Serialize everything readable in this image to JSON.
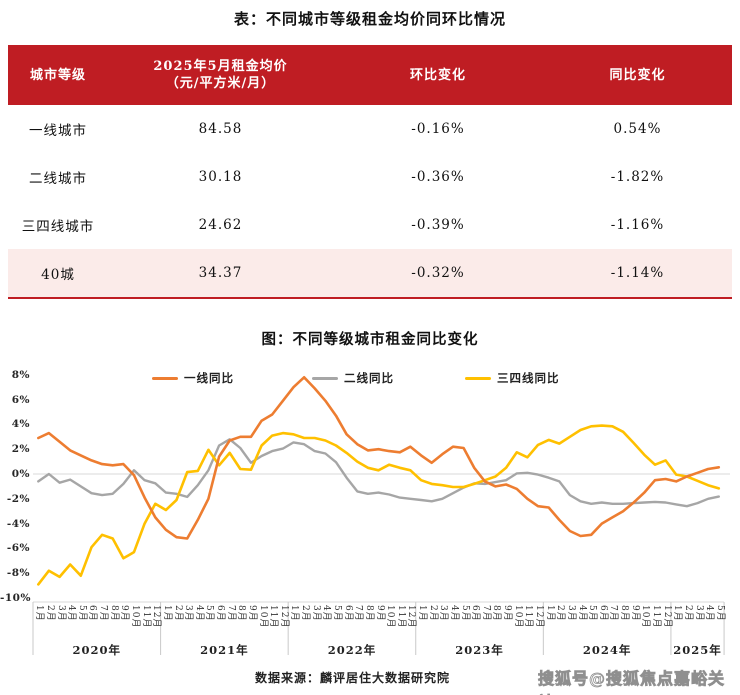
{
  "page": {
    "table_title": "表：不同城市等级租金均价同环比情况",
    "chart_title": "图：不同等级城市租金同比变化",
    "source": "数据来源：麟评居住大数据研究院",
    "watermark": "搜狐号@搜狐焦点嘉峪关站"
  },
  "colors": {
    "header_red": "#BF1D23",
    "highlight_pink": "#FBEBE9",
    "grid_gray": "#D9D9D9",
    "tick_gray": "#C9C9C9",
    "line_first_tier": "#ED7D31",
    "line_second_tier": "#A6A6A6",
    "line_third_fourth_tier": "#FFC000"
  },
  "table": {
    "header": {
      "tier": "城市等级",
      "price_line1": "2025年5月租金均价",
      "price_line2": "（元/平方米/月）",
      "mom": "环比变化",
      "yoy": "同比变化"
    },
    "rows": [
      {
        "tier": "一线城市",
        "price": "84.58",
        "mom": "-0.16%",
        "yoy": "0.54%",
        "highlight": false
      },
      {
        "tier": "二线城市",
        "price": "30.18",
        "mom": "-0.36%",
        "yoy": "-1.82%",
        "highlight": false
      },
      {
        "tier": "三四线城市",
        "price": "24.62",
        "mom": "-0.39%",
        "yoy": "-1.16%",
        "highlight": false
      },
      {
        "tier": "40城",
        "price": "34.37",
        "mom": "-0.32%",
        "yoy": "-1.14%",
        "highlight": true
      }
    ]
  },
  "chart_data": [
    {
      "type": "table",
      "title": "表：不同城市等级租金均价同环比情况",
      "columns": [
        "城市等级",
        "2025年5月租金均价（元/平方米/月）",
        "环比变化",
        "同比变化"
      ],
      "rows": [
        [
          "一线城市",
          84.58,
          "-0.16%",
          "0.54%"
        ],
        [
          "二线城市",
          30.18,
          "-0.36%",
          "-1.82%"
        ],
        [
          "三四线城市",
          24.62,
          "-0.39%",
          "-1.16%"
        ],
        [
          "40城",
          34.37,
          "-0.32%",
          "-1.14%"
        ]
      ]
    },
    {
      "type": "line",
      "title": "图：不同等级城市租金同比变化",
      "ylabel": "",
      "ylim": [
        -10,
        8
      ],
      "y_tick_step": 2,
      "y_tick_suffix": "%",
      "grid": "zero-line-only",
      "legend_position": "top",
      "x": [
        "1月",
        "2月",
        "3月",
        "4月",
        "5月",
        "6月",
        "7月",
        "8月",
        "9月",
        "10月",
        "11月",
        "12月",
        "1月",
        "2月",
        "3月",
        "4月",
        "5月",
        "6月",
        "7月",
        "8月",
        "9月",
        "10月",
        "11月",
        "12月",
        "1月",
        "2月",
        "3月",
        "4月",
        "5月",
        "6月",
        "7月",
        "8月",
        "9月",
        "10月",
        "11月",
        "12月",
        "1月",
        "2月",
        "3月",
        "4月",
        "5月",
        "6月",
        "7月",
        "8月",
        "9月",
        "10月",
        "11月",
        "12月",
        "1月",
        "2月",
        "3月",
        "4月",
        "5月",
        "6月",
        "7月",
        "8月",
        "9月",
        "10月",
        "11月",
        "12月",
        "1月",
        "2月",
        "3月",
        "4月",
        "5月"
      ],
      "year_groups": [
        "2020年",
        "2021年",
        "2022年",
        "2023年",
        "2024年",
        "2025年"
      ],
      "series": [
        {
          "name": "一线同比",
          "color": "#ED7D31",
          "values": [
            2.9,
            3.3,
            2.6,
            1.9,
            1.5,
            1.1,
            0.8,
            0.7,
            0.8,
            -0.1,
            -1.9,
            -3.5,
            -4.5,
            -5.1,
            -5.2,
            -3.7,
            -2.0,
            1.4,
            2.7,
            3.0,
            3.0,
            4.3,
            4.8,
            5.9,
            7.0,
            7.8,
            6.9,
            5.9,
            4.7,
            3.2,
            2.4,
            1.9,
            2.0,
            1.85,
            1.75,
            2.2,
            1.5,
            0.9,
            1.6,
            2.2,
            2.1,
            0.5,
            -0.6,
            -1.0,
            -0.85,
            -1.2,
            -2.0,
            -2.6,
            -2.7,
            -3.7,
            -4.6,
            -5.0,
            -4.9,
            -4.0,
            -3.5,
            -3.0,
            -2.3,
            -1.5,
            -0.5,
            -0.4,
            -0.6,
            -0.2,
            0.1,
            0.4,
            0.54
          ]
        },
        {
          "name": "二线同比",
          "color": "#A6A6A6",
          "values": [
            -0.6,
            0.0,
            -0.7,
            -0.45,
            -1.0,
            -1.55,
            -1.7,
            -1.6,
            -0.8,
            0.3,
            -0.5,
            -0.75,
            -1.5,
            -1.6,
            -1.85,
            -0.9,
            0.3,
            2.3,
            2.8,
            2.1,
            0.9,
            1.45,
            1.85,
            2.05,
            2.55,
            2.4,
            1.85,
            1.65,
            0.95,
            -0.3,
            -1.4,
            -1.6,
            -1.5,
            -1.65,
            -1.9,
            -2.0,
            -2.1,
            -2.2,
            -2.0,
            -1.55,
            -1.1,
            -0.75,
            -0.8,
            -0.65,
            -0.5,
            0.05,
            0.1,
            -0.05,
            -0.3,
            -0.6,
            -1.7,
            -2.2,
            -2.4,
            -2.3,
            -2.4,
            -2.4,
            -2.35,
            -2.3,
            -2.25,
            -2.3,
            -2.45,
            -2.6,
            -2.35,
            -2.0,
            -1.82
          ]
        },
        {
          "name": "三四线同比",
          "color": "#FFC000",
          "values": [
            -8.9,
            -7.8,
            -8.3,
            -7.3,
            -8.2,
            -5.9,
            -4.9,
            -5.2,
            -6.8,
            -6.3,
            -4.0,
            -2.4,
            -2.9,
            -2.1,
            0.15,
            0.25,
            1.95,
            0.7,
            1.7,
            0.4,
            0.35,
            2.3,
            3.1,
            3.3,
            3.2,
            2.9,
            2.9,
            2.7,
            2.3,
            1.7,
            1.0,
            0.5,
            0.3,
            0.75,
            0.5,
            0.3,
            -0.5,
            -0.8,
            -0.9,
            -1.05,
            -1.05,
            -0.8,
            -0.5,
            -0.2,
            0.5,
            1.75,
            1.35,
            2.35,
            2.75,
            2.45,
            3.0,
            3.55,
            3.85,
            3.9,
            3.85,
            3.4,
            2.5,
            1.55,
            0.75,
            1.1,
            -0.05,
            -0.2,
            -0.55,
            -0.9,
            -1.16
          ]
        }
      ]
    }
  ]
}
